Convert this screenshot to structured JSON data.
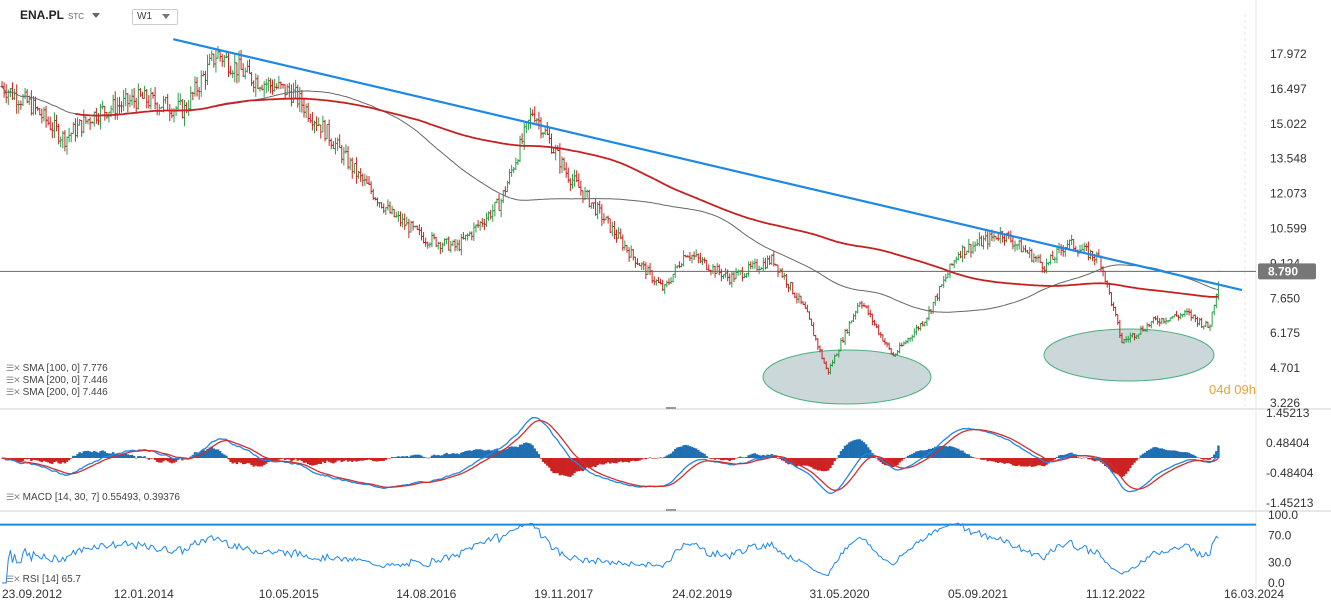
{
  "header": {
    "symbol": "ENA.PL",
    "suffix": "STC",
    "timeframe": "W1"
  },
  "price_label": "8.790",
  "countdown": "04d 09h",
  "legends": {
    "sma1": "SMA [100,  0] 7.776",
    "sma2": "SMA [200,  0] 7.446",
    "sma3": "SMA [200,  0] 7.446",
    "macd": "MACD [14, 30, 7] 0.55493,  0.39376",
    "rsi": "RSI [14] 65.7"
  },
  "colors": {
    "up": "#2a9d4a",
    "down": "#cc2222",
    "sma100": "#666666",
    "sma200": "#c62020",
    "trend": "#1e88e5",
    "macd": "#1e88e5",
    "signal": "#d32f2f",
    "ellipse": "#b9c9cc"
  },
  "chart_data": [
    {
      "type": "candlestick",
      "title": "ENA.PL",
      "price_ticks": [
        "17.972",
        "16.497",
        "15.022",
        "13.548",
        "12.073",
        "10.599",
        "9.124",
        "7.650",
        "6.175",
        "4.701",
        "3.226"
      ],
      "ylim": [
        3.226,
        19.4
      ],
      "x_tick_labels": [
        "23.09.2012",
        "12.01.2014",
        "10.05.2015",
        "14.08.2016",
        "19.11.2017",
        "24.02.2019",
        "31.05.2020",
        "05.09.2021",
        "11.12.2022",
        "16.03.2024"
      ],
      "close_series_approx": [
        [
          2012.73,
          16.6
        ],
        [
          2013.0,
          15.8
        ],
        [
          2013.3,
          14.4
        ],
        [
          2013.6,
          15.5
        ],
        [
          2014.0,
          16.1
        ],
        [
          2014.4,
          15.6
        ],
        [
          2014.7,
          18.0
        ],
        [
          2015.0,
          17.0
        ],
        [
          2015.4,
          16.3
        ],
        [
          2015.7,
          14.7
        ],
        [
          2016.0,
          12.8
        ],
        [
          2016.3,
          11.2
        ],
        [
          2016.6,
          10.2
        ],
        [
          2016.9,
          9.8
        ],
        [
          2017.3,
          11.7
        ],
        [
          2017.6,
          15.6
        ],
        [
          2017.9,
          13.0
        ],
        [
          2018.2,
          11.3
        ],
        [
          2018.5,
          9.5
        ],
        [
          2018.8,
          8.0
        ],
        [
          2019.0,
          9.6
        ],
        [
          2019.4,
          8.5
        ],
        [
          2019.8,
          9.3
        ],
        [
          2020.1,
          7.1
        ],
        [
          2020.3,
          4.5
        ],
        [
          2020.6,
          7.6
        ],
        [
          2020.9,
          5.2
        ],
        [
          2021.2,
          6.8
        ],
        [
          2021.5,
          9.6
        ],
        [
          2021.9,
          10.4
        ],
        [
          2022.3,
          9.0
        ],
        [
          2022.5,
          10.0
        ],
        [
          2022.8,
          9.3
        ],
        [
          2023.0,
          5.8
        ],
        [
          2023.3,
          6.7
        ],
        [
          2023.6,
          7.0
        ],
        [
          2023.8,
          6.4
        ],
        [
          2023.9,
          8.8
        ]
      ],
      "sma100": {
        "name": "SMA [100, 0]",
        "last": 7.776
      },
      "sma200": {
        "name": "SMA [200, 0]",
        "last": 7.446
      },
      "trendline": [
        [
          2014.3,
          18.6
        ],
        [
          2024.1,
          8.0
        ]
      ],
      "current_price": 8.79
    },
    {
      "type": "macd",
      "params": [
        14,
        30,
        7
      ],
      "values": {
        "macd": 0.55493,
        "signal": 0.39376
      },
      "ticks": [
        "1.45213",
        "0.48404",
        "-0.48404",
        "-1.45213"
      ],
      "ylim": [
        -1.45213,
        1.45213
      ]
    },
    {
      "type": "rsi",
      "period": 14,
      "value": 65.7,
      "ticks": [
        "100.0",
        "70.0",
        "30.0",
        "0.0"
      ],
      "ylim": [
        0,
        100
      ],
      "level": 80
    }
  ]
}
